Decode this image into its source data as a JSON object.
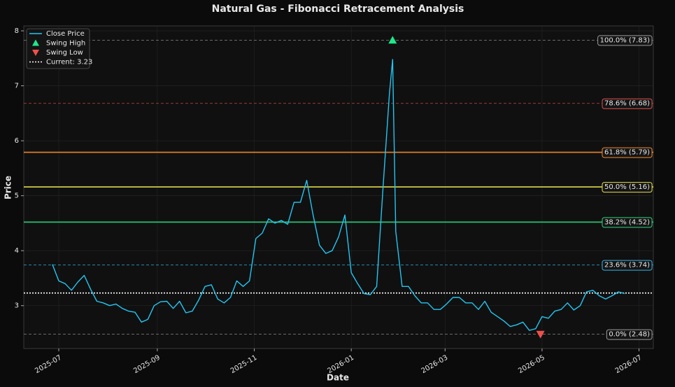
{
  "chart_data": {
    "type": "line",
    "title": "Natural Gas - Fibonacci Retracement Analysis",
    "xlabel": "Date",
    "ylabel": "Price",
    "grid": true,
    "legend": "upper left",
    "xlim": [
      "2025-06-09",
      "2026-07-10"
    ],
    "xticks": [
      "2025-07",
      "2025-09",
      "2025-11",
      "2026-01",
      "2026-03",
      "2026-05",
      "2026-07"
    ],
    "ylim": [
      2.22,
      8.09
    ],
    "yticks": [
      3,
      4,
      5,
      6,
      7,
      8
    ],
    "series": [
      {
        "name": "Close Price",
        "color": "#22c6f2",
        "x": [
          "2025-06-27",
          "2025-07-01",
          "2025-07-05",
          "2025-07-09",
          "2025-07-13",
          "2025-07-17",
          "2025-07-21",
          "2025-07-25",
          "2025-07-29",
          "2025-08-02",
          "2025-08-06",
          "2025-08-10",
          "2025-08-14",
          "2025-08-18",
          "2025-08-22",
          "2025-08-26",
          "2025-08-30",
          "2025-09-03",
          "2025-09-07",
          "2025-09-11",
          "2025-09-15",
          "2025-09-19",
          "2025-09-23",
          "2025-09-27",
          "2025-10-01",
          "2025-10-05",
          "2025-10-09",
          "2025-10-13",
          "2025-10-17",
          "2025-10-21",
          "2025-10-25",
          "2025-10-29",
          "2025-11-02",
          "2025-11-06",
          "2025-11-10",
          "2025-11-14",
          "2025-11-18",
          "2025-11-22",
          "2025-11-26",
          "2025-11-30",
          "2025-12-04",
          "2025-12-08",
          "2025-12-12",
          "2025-12-16",
          "2025-12-20",
          "2025-12-24",
          "2025-12-28",
          "2026-01-01",
          "2026-01-05",
          "2026-01-09",
          "2026-01-13",
          "2026-01-17",
          "2026-01-21",
          "2026-01-25",
          "2026-01-27",
          "2026-01-29",
          "2026-02-02",
          "2026-02-06",
          "2026-02-10",
          "2026-02-14",
          "2026-02-18",
          "2026-02-22",
          "2026-02-26",
          "2026-03-02",
          "2026-03-06",
          "2026-03-10",
          "2026-03-14",
          "2026-03-18",
          "2026-03-22",
          "2026-03-26",
          "2026-03-30",
          "2026-04-03",
          "2026-04-07",
          "2026-04-11",
          "2026-04-15",
          "2026-04-19",
          "2026-04-23",
          "2026-04-27",
          "2026-05-01",
          "2026-05-05",
          "2026-05-09",
          "2026-05-13",
          "2026-05-17",
          "2026-05-21",
          "2026-05-25",
          "2026-05-29",
          "2026-06-02",
          "2026-06-06",
          "2026-06-10",
          "2026-06-14",
          "2026-06-18",
          "2026-06-22"
        ],
        "values": [
          3.75,
          3.45,
          3.4,
          3.28,
          3.43,
          3.55,
          3.3,
          3.08,
          3.05,
          3.0,
          3.03,
          2.95,
          2.9,
          2.88,
          2.7,
          2.75,
          3.0,
          3.07,
          3.08,
          2.95,
          3.08,
          2.87,
          2.9,
          3.1,
          3.35,
          3.38,
          3.12,
          3.05,
          3.15,
          3.45,
          3.35,
          3.45,
          4.22,
          4.32,
          4.58,
          4.5,
          4.55,
          4.48,
          4.88,
          4.88,
          5.28,
          4.65,
          4.1,
          3.95,
          4.0,
          4.25,
          4.65,
          3.6,
          3.4,
          3.22,
          3.2,
          3.35,
          5.15,
          6.85,
          7.48,
          4.35,
          3.35,
          3.35,
          3.18,
          3.05,
          3.05,
          2.93,
          2.93,
          3.03,
          3.15,
          3.15,
          3.05,
          3.05,
          2.93,
          3.08,
          2.88,
          2.8,
          2.72,
          2.62,
          2.65,
          2.7,
          2.55,
          2.58,
          2.8,
          2.77,
          2.9,
          2.93,
          3.05,
          2.92,
          3.0,
          3.25,
          3.28,
          3.18,
          3.12,
          3.18,
          3.25,
          3.22
        ]
      },
      {
        "name": "Swing High",
        "color": "#1de98b",
        "marker": "triangle-up",
        "x": [
          "2026-01-27"
        ],
        "values": [
          7.83
        ]
      },
      {
        "name": "Swing Low",
        "color": "#f0504a",
        "marker": "triangle-down",
        "x": [
          "2026-04-30"
        ],
        "values": [
          2.48
        ]
      }
    ],
    "current": {
      "value": 3.23,
      "label": "Current: 3.23",
      "color": "#ffffff"
    },
    "levels": [
      {
        "value": 7.83,
        "label": "100.0% (7.83)",
        "color": "#9a9a9a",
        "style": "dashed"
      },
      {
        "value": 6.68,
        "label": "78.6% (6.68)",
        "color": "#e0504a",
        "style": "dashed"
      },
      {
        "value": 5.79,
        "label": "61.8% (5.79)",
        "color": "#f28a2e",
        "style": "solid"
      },
      {
        "value": 5.16,
        "label": "50.0% (5.16)",
        "color": "#e4e048",
        "style": "solid"
      },
      {
        "value": 4.52,
        "label": "38.2% (4.52)",
        "color": "#2ed47a",
        "style": "solid"
      },
      {
        "value": 3.74,
        "label": "23.6% (3.74)",
        "color": "#31b4e6",
        "style": "dashed"
      },
      {
        "value": 2.48,
        "label": "0.0% (2.48)",
        "color": "#9a9a9a",
        "style": "dashed"
      }
    ]
  }
}
